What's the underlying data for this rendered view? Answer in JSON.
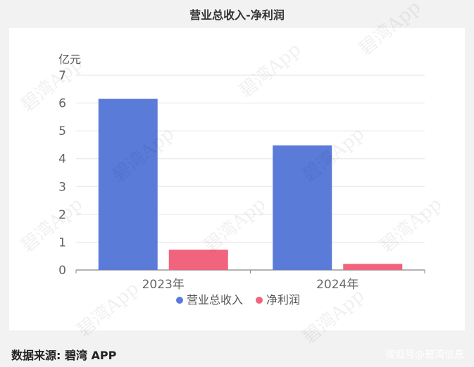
{
  "title": "营业总收入-净利润",
  "source_label": "数据来源: 碧湾 APP",
  "credit": "搜狐号@碧湾信息",
  "watermark": "碧湾App",
  "chart_data": {
    "type": "bar",
    "ylabel": "亿元",
    "categories": [
      "2023年",
      "2024年"
    ],
    "ylim": [
      0,
      7
    ],
    "yticks": [
      0,
      1,
      2,
      3,
      4,
      5,
      6,
      7
    ],
    "grid": true,
    "legend_position": "bottom",
    "series": [
      {
        "name": "营业总收入",
        "color": "#5b7bd9",
        "values": [
          6.15,
          4.48
        ]
      },
      {
        "name": "净利润",
        "color": "#f0647e",
        "values": [
          0.73,
          0.22
        ]
      }
    ]
  }
}
